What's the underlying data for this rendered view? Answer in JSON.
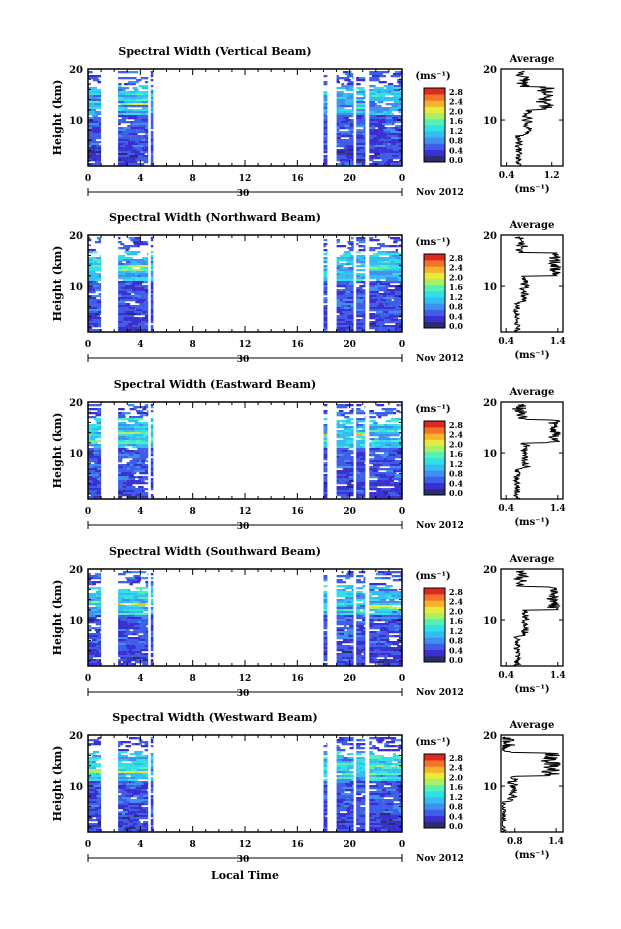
{
  "figure": {
    "xlabel": "Local Time",
    "date_label": "Nov 2012",
    "date_number": "30"
  },
  "colorbar": {
    "unit": "(ms⁻¹)",
    "ticks": [
      "0.0",
      "0.4",
      "0.8",
      "1.2",
      "1.6",
      "2.0",
      "2.4",
      "2.8"
    ],
    "colors": [
      "#2a2e6e",
      "#3a2fd0",
      "#3f5ee8",
      "#3f8ff0",
      "#33bdf2",
      "#30e0e6",
      "#55f0b4",
      "#a8f06a",
      "#e8ea3c",
      "#f7b22e",
      "#f5722a",
      "#dc2a1e"
    ]
  },
  "chart_data": [
    {
      "type": "heatmap",
      "title": "Spectral Width (Vertical Beam)",
      "ylabel": "Height (km)",
      "ylim": [
        1,
        20
      ],
      "yticks": [
        "20",
        "10"
      ],
      "xticks": [
        "0",
        "4",
        "8",
        "12",
        "16",
        "20",
        "0"
      ],
      "data_intervals_hours": [
        [
          0,
          1
        ],
        [
          2.3,
          4.6
        ],
        [
          4.8,
          5
        ],
        [
          18,
          18.3
        ],
        [
          19,
          20.3
        ],
        [
          20.5,
          21.2
        ],
        [
          21.5,
          24
        ]
      ],
      "profile": {
        "title": "Average",
        "xlabel": "(ms⁻¹)",
        "xticks": [
          "0.4",
          "1.2"
        ],
        "xlim": [
          0.3,
          1.4
        ],
        "yticks": [
          "20",
          "10"
        ]
      }
    },
    {
      "type": "heatmap",
      "title": "Spectral Width (Northward Beam)",
      "ylabel": "Height (km)",
      "ylim": [
        1,
        20
      ],
      "yticks": [
        "20",
        "10"
      ],
      "xticks": [
        "0",
        "4",
        "8",
        "12",
        "16",
        "20",
        "0"
      ],
      "data_intervals_hours": [
        [
          0,
          1
        ],
        [
          2.3,
          4.6
        ],
        [
          4.8,
          5
        ],
        [
          18,
          18.3
        ],
        [
          19,
          20.3
        ],
        [
          20.5,
          21.2
        ],
        [
          21.5,
          24
        ]
      ],
      "profile": {
        "title": "Average",
        "xlabel": "(ms⁻¹)",
        "xticks": [
          "0.4",
          "1.4"
        ],
        "xlim": [
          0.3,
          1.5
        ],
        "yticks": [
          "20",
          "10"
        ]
      }
    },
    {
      "type": "heatmap",
      "title": "Spectral Width (Eastward Beam)",
      "ylabel": "Height (km)",
      "ylim": [
        1,
        20
      ],
      "yticks": [
        "20",
        "10"
      ],
      "xticks": [
        "0",
        "4",
        "8",
        "12",
        "16",
        "20",
        "0"
      ],
      "data_intervals_hours": [
        [
          0,
          1
        ],
        [
          2.3,
          4.6
        ],
        [
          4.8,
          5
        ],
        [
          18,
          18.3
        ],
        [
          19,
          20.3
        ],
        [
          20.5,
          21.2
        ],
        [
          21.5,
          24
        ]
      ],
      "profile": {
        "title": "Average",
        "xlabel": "(ms⁻¹)",
        "xticks": [
          "0.4",
          "1.4"
        ],
        "xlim": [
          0.3,
          1.5
        ],
        "yticks": [
          "20",
          "10"
        ]
      }
    },
    {
      "type": "heatmap",
      "title": "Spectral Width (Southward Beam)",
      "ylabel": "Height (km)",
      "ylim": [
        1,
        20
      ],
      "yticks": [
        "20",
        "10"
      ],
      "xticks": [
        "0",
        "4",
        "8",
        "12",
        "16",
        "20",
        "0"
      ],
      "data_intervals_hours": [
        [
          0,
          1
        ],
        [
          2.3,
          4.6
        ],
        [
          4.8,
          5
        ],
        [
          18,
          18.3
        ],
        [
          19,
          20.3
        ],
        [
          20.5,
          21.2
        ],
        [
          21.5,
          24
        ]
      ],
      "profile": {
        "title": "Average",
        "xlabel": "(ms⁻¹)",
        "xticks": [
          "0.4",
          "1.4"
        ],
        "xlim": [
          0.3,
          1.5
        ],
        "yticks": [
          "20",
          "10"
        ]
      }
    },
    {
      "type": "heatmap",
      "title": "Spectral Width (Westward Beam)",
      "ylabel": "Height (km)",
      "ylim": [
        1,
        20
      ],
      "yticks": [
        "20",
        "10"
      ],
      "xticks": [
        "0",
        "4",
        "8",
        "12",
        "16",
        "20",
        "0"
      ],
      "data_intervals_hours": [
        [
          0,
          1
        ],
        [
          2.3,
          4.6
        ],
        [
          4.8,
          5
        ],
        [
          18,
          18.3
        ],
        [
          19,
          20.3
        ],
        [
          20.5,
          21.2
        ],
        [
          21.5,
          24
        ]
      ],
      "profile": {
        "title": "Average",
        "xlabel": "(ms⁻¹)",
        "xticks": [
          "0.8",
          "1.4"
        ],
        "xlim": [
          0.6,
          1.5
        ],
        "yticks": [
          "20",
          "10"
        ]
      }
    }
  ]
}
